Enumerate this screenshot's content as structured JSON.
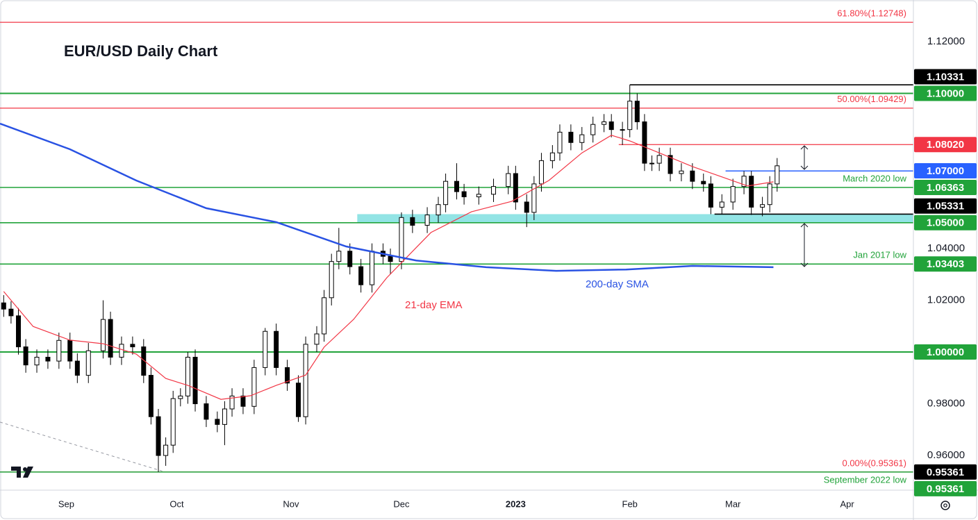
{
  "chart_data": {
    "type": "candlestick",
    "title": "EUR/USD Daily Chart",
    "xlim": [
      -18,
      230
    ],
    "ylim": [
      0.9466,
      1.1361
    ],
    "xticks": [
      {
        "value": 0,
        "label": "Sep"
      },
      {
        "value": 30,
        "label": "Oct"
      },
      {
        "value": 61,
        "label": "Nov"
      },
      {
        "value": 91,
        "label": "Dec"
      },
      {
        "value": 122,
        "label": "2023"
      },
      {
        "value": 153,
        "label": "Feb"
      },
      {
        "value": 181,
        "label": "Mar"
      },
      {
        "value": 212,
        "label": "Apr"
      }
    ],
    "yticks": [
      {
        "value": 1.12,
        "label": "1.12000"
      },
      {
        "value": 1.04,
        "label": "1.04000"
      },
      {
        "value": 1.02,
        "label": "1.02000"
      },
      {
        "value": 0.98,
        "label": "0.98000"
      },
      {
        "value": 0.96,
        "label": "0.96000"
      }
    ],
    "candles": {
      "up_color": "#ffffff",
      "down_color": "#000000",
      "x": [
        -17,
        -15,
        -13,
        -11,
        -8,
        -5,
        -2,
        1,
        3,
        6,
        10,
        12,
        15,
        18,
        21,
        23,
        25,
        27,
        29,
        31,
        33,
        35,
        38,
        41,
        43,
        45,
        48,
        51,
        54,
        57,
        60,
        63,
        65,
        68,
        70,
        72,
        74,
        77,
        80,
        83,
        86,
        88,
        91,
        94,
        98,
        101,
        103,
        106,
        108,
        112,
        116,
        120,
        122,
        125,
        127,
        129,
        132,
        134,
        137,
        140,
        143,
        146,
        148,
        151,
        153,
        155,
        157,
        159,
        161,
        164,
        167,
        170,
        173,
        175,
        178,
        181,
        184,
        186,
        189,
        191,
        193
      ],
      "open": [
        1.019,
        1.0166,
        1.014,
        1.002,
        0.995,
        0.998,
        0.9965,
        1.0045,
        0.9965,
        0.991,
        1.0005,
        1.0126,
        0.998,
        1.003,
        1.002,
        0.991,
        0.975,
        0.96,
        0.964,
        0.982,
        0.983,
        0.998,
        0.98,
        0.974,
        0.972,
        0.978,
        0.983,
        0.979,
        0.994,
        1.008,
        0.994,
        0.988,
        0.975,
        1.003,
        1.007,
        1.021,
        1.035,
        1.039,
        1.033,
        1.026,
        1.039,
        1.037,
        1.035,
        1.052,
        1.049,
        1.053,
        1.057,
        1.066,
        1.062,
        1.06,
        1.061,
        1.064,
        1.069,
        1.058,
        1.054,
        1.065,
        1.074,
        1.077,
        1.085,
        1.081,
        1.084,
        1.088,
        1.089,
        1.086,
        1.086,
        1.097,
        1.089,
        1.073,
        1.073,
        1.076,
        1.069,
        1.07,
        1.066,
        1.065,
        1.056,
        1.058,
        1.064,
        1.068,
        1.056,
        1.057,
        1.065
      ],
      "high": [
        1.022,
        1.0196,
        1.017,
        1.005,
        1.001,
        1.001,
        1.0075,
        1.0075,
        0.9995,
        1.0035,
        1.02,
        1.0156,
        1.006,
        1.006,
        1.005,
        0.994,
        0.978,
        0.967,
        0.985,
        0.986,
        1.0,
        1.001,
        0.983,
        0.977,
        0.981,
        0.986,
        0.986,
        0.997,
        1.0093,
        1.011,
        0.997,
        0.991,
        1.006,
        1.01,
        1.024,
        1.038,
        1.048,
        1.042,
        1.036,
        1.042,
        1.042,
        1.04,
        1.054,
        1.055,
        1.056,
        1.06,
        1.069,
        1.073,
        1.065,
        1.064,
        1.067,
        1.072,
        1.072,
        1.061,
        1.068,
        1.077,
        1.08,
        1.088,
        1.088,
        1.087,
        1.091,
        1.092,
        1.092,
        1.089,
        1.1033,
        1.1,
        1.092,
        1.076,
        1.079,
        1.079,
        1.073,
        1.073,
        1.069,
        1.068,
        1.061,
        1.067,
        1.07,
        1.07,
        1.06,
        1.068,
        1.075
      ],
      "low": [
        1.0136,
        1.011,
        0.999,
        0.992,
        0.992,
        0.9935,
        0.9935,
        0.9935,
        0.988,
        0.988,
        0.9975,
        0.995,
        0.995,
        0.999,
        0.988,
        0.972,
        0.9536,
        0.956,
        0.961,
        0.979,
        0.98,
        0.977,
        0.971,
        0.969,
        0.964,
        0.975,
        0.976,
        0.976,
        0.991,
        0.991,
        0.985,
        0.973,
        0.972,
        1.0,
        1.004,
        1.018,
        1.032,
        1.03,
        1.023,
        1.023,
        1.034,
        1.03,
        1.032,
        1.046,
        1.046,
        1.05,
        1.054,
        1.059,
        1.057,
        1.057,
        1.058,
        1.061,
        1.055,
        1.0483,
        1.051,
        1.062,
        1.071,
        1.074,
        1.078,
        1.078,
        1.081,
        1.085,
        1.083,
        1.08,
        1.083,
        1.086,
        1.07,
        1.07,
        1.07,
        1.066,
        1.066,
        1.063,
        1.062,
        1.0533,
        1.0533,
        1.055,
        1.061,
        1.053,
        1.0525,
        1.054,
        1.062
      ],
      "close": [
        1.0166,
        1.014,
        1.002,
        0.995,
        0.998,
        0.9965,
        1.0045,
        0.9965,
        0.991,
        1.0005,
        1.0126,
        0.998,
        1.003,
        1.002,
        0.991,
        0.975,
        0.96,
        0.964,
        0.982,
        0.983,
        0.998,
        0.98,
        0.974,
        0.972,
        0.978,
        0.983,
        0.979,
        0.994,
        1.008,
        0.994,
        0.988,
        0.975,
        1.003,
        1.007,
        1.021,
        1.035,
        1.039,
        1.033,
        1.026,
        1.039,
        1.037,
        1.035,
        1.052,
        1.049,
        1.053,
        1.057,
        1.066,
        1.062,
        1.06,
        1.061,
        1.064,
        1.069,
        1.058,
        1.054,
        1.065,
        1.074,
        1.077,
        1.085,
        1.081,
        1.084,
        1.088,
        1.089,
        1.086,
        1.086,
        1.097,
        1.089,
        1.073,
        1.073,
        1.076,
        1.069,
        1.07,
        1.066,
        1.065,
        1.056,
        1.058,
        1.064,
        1.068,
        1.056,
        1.057,
        1.065,
        1.072
      ]
    },
    "series": [
      {
        "name": "21-day EMA",
        "color": "#f23645",
        "x": [
          -17,
          -9,
          1,
          10,
          19,
          27,
          33,
          42,
          50,
          57,
          65,
          70,
          78,
          87,
          99,
          110,
          121,
          131,
          140,
          148,
          153,
          161,
          170,
          178,
          185,
          192
        ],
        "values": [
          1.0234,
          1.0099,
          1.0046,
          1.0032,
          0.9992,
          0.9898,
          0.9871,
          0.9817,
          0.9831,
          0.9871,
          0.9911,
          1.0019,
          1.0126,
          1.0287,
          1.0462,
          1.0542,
          1.0583,
          1.0663,
          1.077,
          1.0838,
          1.0816,
          1.077,
          1.0717,
          1.0677,
          1.0642,
          1.0658
        ]
      },
      {
        "name": "200-day SMA",
        "color": "#2952e3",
        "x": [
          -18,
          1,
          19,
          38,
          57,
          76,
          95,
          114,
          133,
          152,
          170,
          192
        ],
        "values": [
          1.0883,
          1.0784,
          1.0663,
          1.0556,
          1.0502,
          1.0408,
          1.0354,
          1.0328,
          1.0314,
          1.0319,
          1.0333,
          1.0328
        ]
      }
    ],
    "zone": {
      "from": 1.05,
      "to": 1.05331,
      "start": 79,
      "color": "#7fdfe0"
    },
    "levels": [
      {
        "value": 1.12748,
        "color": "#f23645",
        "note": "61.80%(1.12748)"
      },
      {
        "value": 1.10331,
        "color": "#000000",
        "start": 153,
        "label": "1.10331"
      },
      {
        "value": 1.1,
        "color": "#21a33a",
        "label": "1.10000"
      },
      {
        "value": 1.09429,
        "color": "#f23645",
        "note": "50.00%(1.09429)"
      },
      {
        "value": 1.0802,
        "color": "#f23645",
        "start": 150,
        "label": "1.08020"
      },
      {
        "value": 1.07,
        "color": "#2962ff",
        "start": 179,
        "label": "1.07000"
      },
      {
        "value": 1.06363,
        "color": "#21a33a",
        "label": "1.06363",
        "note": "March 2020 low"
      },
      {
        "value": 1.05331,
        "color": "#000000",
        "start": 176,
        "label": "1.05331"
      },
      {
        "value": 1.05,
        "color": "#21a33a",
        "label": "1.05000"
      },
      {
        "value": 1.03403,
        "color": "#21a33a",
        "label": "1.03403",
        "note": "Jan 2017 low"
      },
      {
        "value": 1.0,
        "color": "#21a33a",
        "label": "1.00000"
      },
      {
        "value": 0.95361,
        "color": "#f23645",
        "tag_color": "#000000",
        "label": "0.95361",
        "note": "0.00%(0.95361)"
      },
      {
        "value": 0.95361,
        "color": "#21a33a",
        "label": "0.95361",
        "note": "September 2022 low"
      }
    ]
  }
}
